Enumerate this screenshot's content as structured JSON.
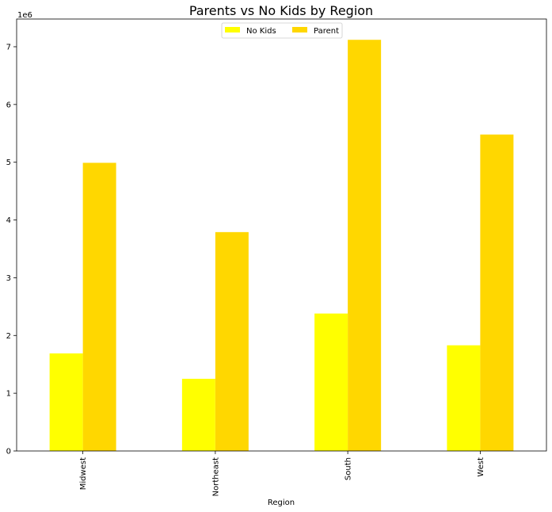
{
  "chart_data": {
    "type": "bar",
    "title": "Parents vs No Kids by Region",
    "xlabel": "Region",
    "ylabel": "",
    "y_scale_label": "1e6",
    "categories": [
      "Midwest",
      "Northeast",
      "South",
      "West"
    ],
    "series": [
      {
        "name": "No Kids",
        "color": "#ffff00",
        "values": [
          1690000,
          1250000,
          2380000,
          1830000
        ]
      },
      {
        "name": "Parent",
        "color": "#ffd700",
        "values": [
          4990000,
          3790000,
          7120000,
          5480000
        ]
      }
    ],
    "ylim": [
      0,
      7480000
    ],
    "yticks": [
      0,
      1,
      2,
      3,
      4,
      5,
      6,
      7
    ],
    "ytick_scale": 1000000,
    "grid": false,
    "legend_placement": "top-center"
  }
}
